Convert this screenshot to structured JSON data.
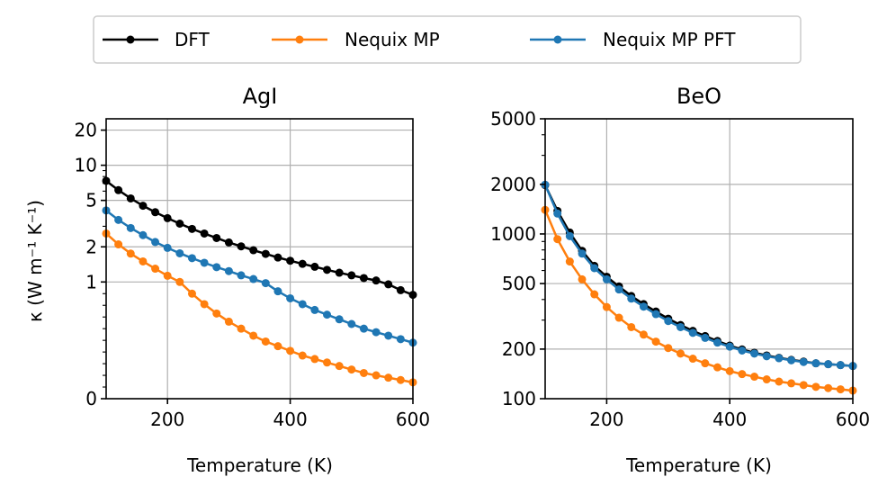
{
  "legend": {
    "entries": [
      {
        "label": "DFT",
        "color": "#000000"
      },
      {
        "label": "Nequix MP",
        "color": "#ff7f0e"
      },
      {
        "label": "Nequix MP PFT",
        "color": "#1f77b4"
      }
    ]
  },
  "ylabel_shared": "κ (W m⁻¹ K⁻¹)",
  "chart_data": [
    {
      "type": "line",
      "title": "AgI",
      "xlabel": "Temperature (K)",
      "ylabel": "κ (W m⁻¹ K⁻¹)",
      "yscale": "symlog",
      "xlim": [
        100,
        600
      ],
      "ylim": [
        0,
        25
      ],
      "xticks": [
        200,
        400,
        600
      ],
      "yticks": [
        0,
        1,
        2,
        5,
        10,
        20
      ],
      "ytick_labels": [
        "0",
        "1",
        "2",
        "5",
        "10",
        "20"
      ],
      "grid": true,
      "x": [
        100,
        120,
        140,
        160,
        180,
        200,
        220,
        240,
        260,
        280,
        300,
        320,
        340,
        360,
        380,
        400,
        420,
        440,
        460,
        480,
        500,
        520,
        540,
        560,
        580,
        600
      ],
      "series": [
        {
          "name": "DFT",
          "values": [
            7.35,
            6.12,
            5.2,
            4.5,
            3.96,
            3.52,
            3.16,
            2.85,
            2.6,
            2.38,
            2.18,
            2.02,
            1.87,
            1.74,
            1.62,
            1.52,
            1.43,
            1.35,
            1.27,
            1.2,
            1.14,
            1.08,
            1.03,
            0.98,
            0.93,
            0.89
          ]
        },
        {
          "name": "Nequix MP",
          "values": [
            2.6,
            2.1,
            1.75,
            1.5,
            1.3,
            1.13,
            1.0,
            0.9,
            0.81,
            0.73,
            0.66,
            0.6,
            0.54,
            0.49,
            0.45,
            0.41,
            0.37,
            0.34,
            0.31,
            0.28,
            0.25,
            0.22,
            0.2,
            0.18,
            0.16,
            0.14
          ]
        },
        {
          "name": "Nequix MP PFT",
          "values": [
            4.1,
            3.4,
            2.9,
            2.52,
            2.2,
            1.96,
            1.76,
            1.6,
            1.46,
            1.34,
            1.24,
            1.14,
            1.06,
            0.99,
            0.92,
            0.86,
            0.81,
            0.76,
            0.72,
            0.68,
            0.64,
            0.6,
            0.57,
            0.54,
            0.51,
            0.48
          ]
        }
      ]
    },
    {
      "type": "line",
      "title": "BeO",
      "xlabel": "Temperature (K)",
      "ylabel": "",
      "yscale": "log",
      "xlim": [
        100,
        600
      ],
      "ylim": [
        100,
        5000
      ],
      "xticks": [
        200,
        400,
        600
      ],
      "yticks": [
        100,
        200,
        500,
        1000,
        2000,
        5000
      ],
      "ytick_labels": [
        "100",
        "200",
        "500",
        "1000",
        "2000",
        "5000"
      ],
      "grid": true,
      "x": [
        100,
        120,
        140,
        160,
        180,
        200,
        220,
        240,
        260,
        280,
        300,
        320,
        340,
        360,
        380,
        400,
        420,
        440,
        460,
        480,
        500,
        520,
        540,
        560,
        580,
        600
      ],
      "series": [
        {
          "name": "DFT",
          "values": [
            1980,
            1380,
            1020,
            790,
            640,
            550,
            480,
            420,
            375,
            338,
            306,
            280,
            258,
            240,
            224,
            210,
            199,
            190,
            183,
            177,
            172,
            168,
            164,
            162,
            160,
            158
          ]
        },
        {
          "name": "Nequix MP",
          "values": [
            1400,
            930,
            680,
            530,
            430,
            360,
            310,
            272,
            245,
            222,
            203,
            188,
            175,
            164,
            155,
            147,
            141,
            136,
            131,
            127,
            124,
            121,
            118,
            116,
            114,
            112
          ]
        },
        {
          "name": "Nequix MP PFT",
          "values": [
            1990,
            1330,
            970,
            760,
            620,
            530,
            460,
            405,
            362,
            326,
            296,
            272,
            251,
            234,
            219,
            207,
            196,
            188,
            181,
            176,
            171,
            167,
            164,
            162,
            160,
            158
          ]
        }
      ]
    }
  ]
}
